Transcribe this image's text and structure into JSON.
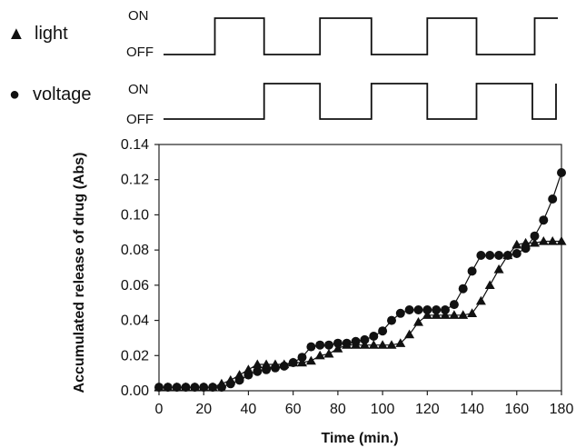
{
  "signals": [
    {
      "name": "light",
      "symbol": "▲",
      "on_label": "ON",
      "off_label": "OFF",
      "on_periods": [
        [
          25,
          47
        ],
        [
          72,
          95
        ],
        [
          120,
          142
        ],
        [
          168,
          190
        ]
      ]
    },
    {
      "name": "voltage",
      "symbol": "●",
      "on_label": "ON",
      "off_label": "OFF",
      "on_periods": [
        [
          47,
          72
        ],
        [
          95,
          120
        ],
        [
          142,
          167
        ],
        [
          188,
          198
        ]
      ]
    }
  ],
  "chart_data": {
    "type": "line",
    "title": "",
    "xlabel": "Time (min.)",
    "ylabel": "Accumulated release of drug (Abs)",
    "xlim": [
      0,
      180
    ],
    "ylim": [
      0,
      0.14
    ],
    "xticks": [
      0,
      20,
      40,
      60,
      80,
      100,
      120,
      140,
      160,
      180
    ],
    "yticks": [
      "0.00",
      "0.02",
      "0.04",
      "0.06",
      "0.08",
      "0.10",
      "0.12",
      "0.14"
    ],
    "grid": false,
    "series": [
      {
        "name": "voltage",
        "marker": "circle",
        "x": [
          0,
          4,
          8,
          12,
          16,
          20,
          24,
          28,
          32,
          36,
          40,
          44,
          48,
          52,
          56,
          60,
          64,
          68,
          72,
          76,
          80,
          84,
          88,
          92,
          96,
          100,
          104,
          108,
          112,
          116,
          120,
          124,
          128,
          132,
          136,
          140,
          144,
          148,
          152,
          156,
          160,
          164,
          168,
          172,
          176,
          180
        ],
        "y": [
          0.002,
          0.002,
          0.002,
          0.002,
          0.002,
          0.002,
          0.002,
          0.002,
          0.004,
          0.006,
          0.009,
          0.011,
          0.012,
          0.013,
          0.014,
          0.016,
          0.019,
          0.025,
          0.026,
          0.026,
          0.027,
          0.027,
          0.028,
          0.029,
          0.031,
          0.034,
          0.04,
          0.044,
          0.046,
          0.046,
          0.046,
          0.046,
          0.046,
          0.049,
          0.058,
          0.068,
          0.077,
          0.077,
          0.077,
          0.077,
          0.078,
          0.081,
          0.088,
          0.097,
          0.109,
          0.124
        ]
      },
      {
        "name": "light",
        "marker": "triangle",
        "x": [
          0,
          4,
          8,
          12,
          16,
          20,
          24,
          28,
          32,
          36,
          40,
          44,
          48,
          52,
          56,
          60,
          64,
          68,
          72,
          76,
          80,
          84,
          88,
          92,
          96,
          100,
          104,
          108,
          112,
          116,
          120,
          124,
          128,
          132,
          136,
          140,
          144,
          148,
          152,
          156,
          160,
          164,
          168,
          172,
          176,
          180
        ],
        "y": [
          0.002,
          0.002,
          0.002,
          0.002,
          0.002,
          0.002,
          0.002,
          0.004,
          0.006,
          0.009,
          0.012,
          0.015,
          0.015,
          0.015,
          0.015,
          0.016,
          0.016,
          0.017,
          0.02,
          0.021,
          0.024,
          0.026,
          0.026,
          0.026,
          0.026,
          0.026,
          0.026,
          0.027,
          0.032,
          0.039,
          0.043,
          0.043,
          0.043,
          0.043,
          0.043,
          0.044,
          0.051,
          0.06,
          0.069,
          0.077,
          0.083,
          0.084,
          0.084,
          0.085,
          0.085,
          0.085
        ]
      }
    ]
  }
}
